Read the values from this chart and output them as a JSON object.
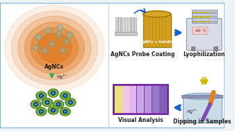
{
  "bg_color": "#eef3f8",
  "border_color": "#7ab3d4",
  "divider_color": "#aaaaaa",
  "orange_blob_color": "#e07010",
  "agncs_label": "AgNCs",
  "hg_label": "Hg²⁺",
  "probe_coating_label": "AgNCs Probe Coating",
  "lyophilization_label": "Lyophilization",
  "visual_analysis_label": "Visual Analysis",
  "dipping_label": "Dipping in Samples",
  "container_label": "AgNCs + Gelatin",
  "lyoph_temp": "-60 °C",
  "hg2_label": "Hg²⁺",
  "strip_colors": [
    "#e8e870",
    "#f0c8e0",
    "#e0b8f0",
    "#c8a8e8",
    "#b898e0",
    "#9878c8",
    "#8060b8"
  ],
  "strip_border": "#7030a0",
  "arrow_color": "#1560d0",
  "green_arrow_color": "#30b060",
  "yellow_arrow_color": "#d4b800",
  "font_size_label": 5.5,
  "font_size_small": 4.8,
  "font_size_tiny": 3.8
}
